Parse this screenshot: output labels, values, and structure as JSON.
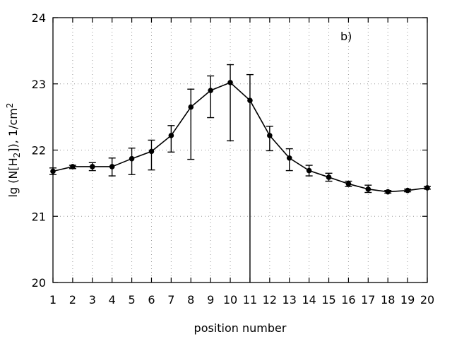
{
  "chart_data": {
    "type": "line",
    "title": "",
    "annotation": "b)",
    "xlabel": "position number",
    "ylabel": {
      "prefix": "lg (N[H",
      "subscript": "2",
      "middle": "]), 1/cm",
      "superscript": "2"
    },
    "xlim": [
      1,
      20
    ],
    "ylim": [
      20,
      24
    ],
    "grid": true,
    "x_ticks": [
      1,
      2,
      3,
      4,
      5,
      6,
      7,
      8,
      9,
      10,
      11,
      12,
      13,
      14,
      15,
      16,
      17,
      18,
      19,
      20
    ],
    "y_ticks": [
      20,
      21,
      22,
      23,
      24
    ],
    "series": [
      {
        "x": [
          1,
          2,
          3,
          4,
          5,
          6,
          7,
          8,
          9,
          10,
          11,
          12,
          13,
          14,
          15,
          16,
          17,
          18,
          19,
          20
        ],
        "y": [
          21.68,
          21.75,
          21.75,
          21.75,
          21.87,
          21.98,
          22.22,
          22.65,
          22.9,
          23.02,
          22.75,
          22.22,
          21.88,
          21.69,
          21.59,
          21.49,
          21.41,
          21.37,
          21.39,
          21.43
        ],
        "y_err_low": [
          21.63,
          21.72,
          21.69,
          21.61,
          21.63,
          21.7,
          21.97,
          21.86,
          22.49,
          22.14,
          20.0,
          21.99,
          21.69,
          21.61,
          21.53,
          21.45,
          21.36,
          21.35,
          21.37,
          21.41
        ],
        "y_err_high": [
          21.73,
          21.77,
          21.81,
          21.88,
          22.03,
          22.15,
          22.37,
          22.92,
          23.12,
          23.29,
          23.14,
          22.36,
          22.02,
          21.77,
          21.65,
          21.53,
          21.47,
          21.39,
          21.41,
          21.45
        ]
      }
    ]
  }
}
